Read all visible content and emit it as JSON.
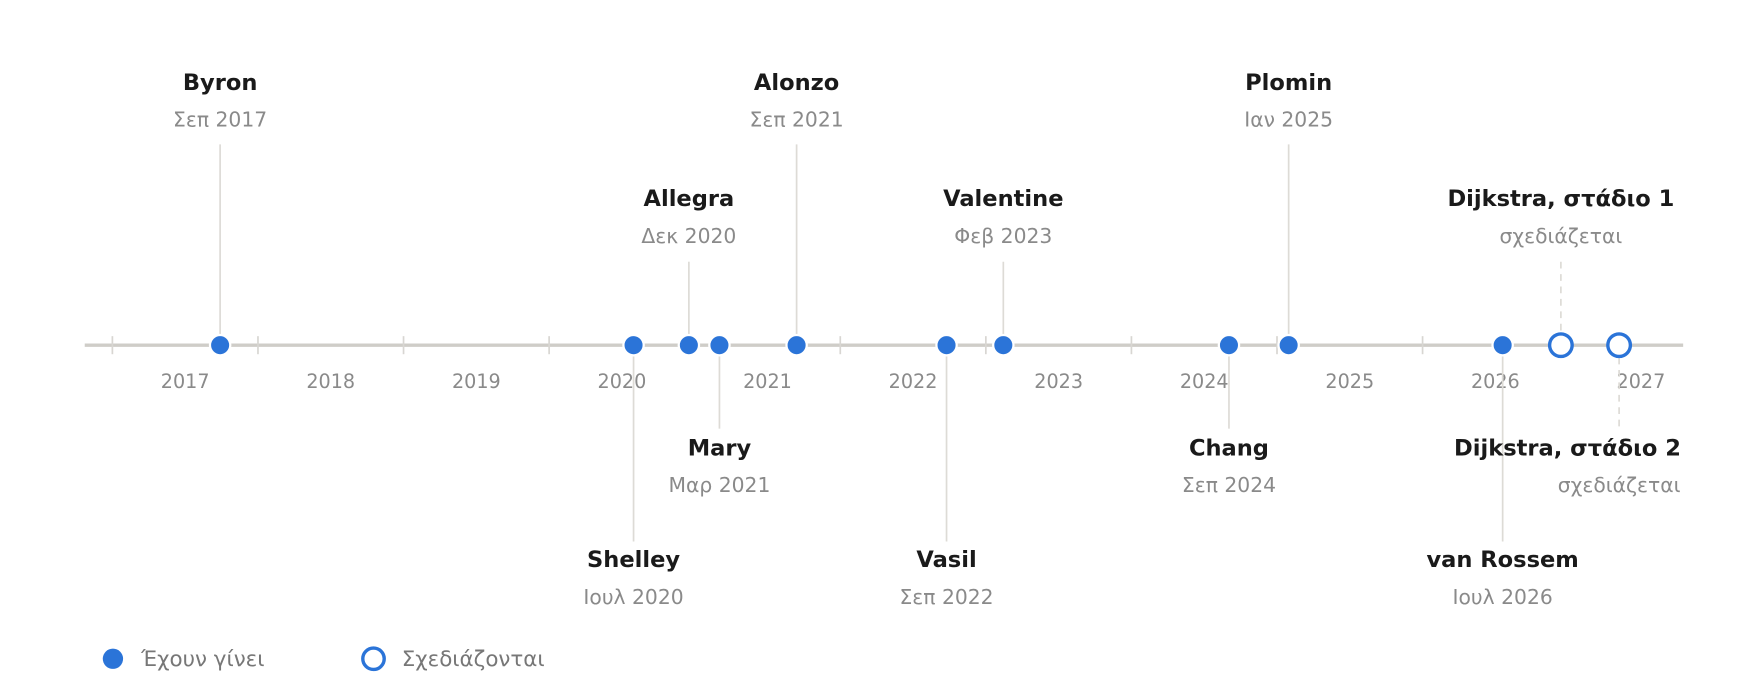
{
  "chart_data": {
    "type": "timeline",
    "color": "#2b74d8",
    "xlim": [
      2016.81,
      2027.79
    ],
    "xticks": [
      2017,
      2018,
      2019,
      2020,
      2021,
      2022,
      2023,
      2024,
      2025,
      2026,
      2027
    ],
    "legend": [
      {
        "name": "Έχουν γίνει",
        "filled": true
      },
      {
        "name": "Σχεδιάζονται",
        "filled": false
      }
    ],
    "events": [
      {
        "name": "Byron",
        "date": "Σεπ 2017",
        "x": 2017.74,
        "group": 0
      },
      {
        "name": "Shelley",
        "date": "Ιουλ 2020",
        "x": 2020.58,
        "group": 0
      },
      {
        "name": "Allegra",
        "date": "Δεκ 2020",
        "x": 2020.96,
        "group": 0
      },
      {
        "name": "Mary",
        "date": "Μαρ 2021",
        "x": 2021.17,
        "group": 0
      },
      {
        "name": "Alonzo",
        "date": "Σεπ 2021",
        "x": 2021.7,
        "group": 0
      },
      {
        "name": "Vasil",
        "date": "Σεπ 2022",
        "x": 2022.73,
        "group": 0
      },
      {
        "name": "Valentine",
        "date": "Φεβ 2023",
        "x": 2023.12,
        "group": 0
      },
      {
        "name": "Chang",
        "date": "Σεπ 2024",
        "x": 2024.67,
        "group": 0
      },
      {
        "name": "Plomin",
        "date": "Ιαν 2025",
        "x": 2025.08,
        "group": 0
      },
      {
        "name": "van Rossem",
        "date": "Ιουλ 2026",
        "x": 2026.55,
        "group": 0
      },
      {
        "name": "Dijkstra, στάδιο 1",
        "date": "σχεδιάζεται",
        "x": 2026.95,
        "group": 1
      },
      {
        "name": "Dijkstra, στάδιο 2",
        "date": "σχεδιάζεται",
        "x": 2027.35,
        "group": 1
      }
    ]
  }
}
